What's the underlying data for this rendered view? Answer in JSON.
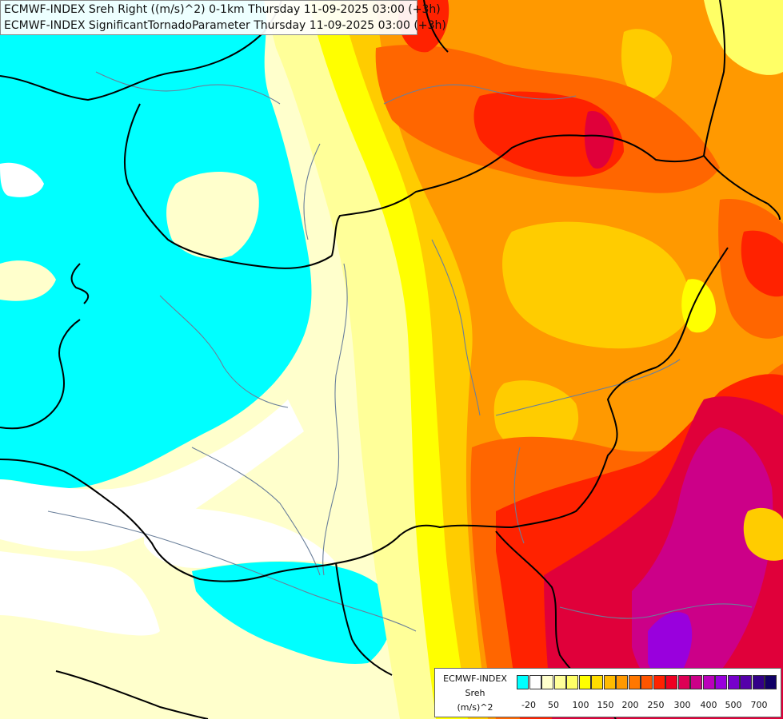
{
  "header": {
    "line1": "ECMWF-INDEX Sreh Right ((m/s)^2) 0-1km Thursday 11-09-2025 03:00 (+3h)",
    "line2": "ECMWF-INDEX SignificantTornadoParameter Thursday 11-09-2025 03:00 (+3h)"
  },
  "legend": {
    "title1": "ECMWF-INDEX",
    "title2": "Sreh",
    "title3": "(m/s)^2",
    "colors": [
      "#00ffff",
      "#ffffff",
      "#ffffcc",
      "#ffff99",
      "#ffff66",
      "#ffff00",
      "#ffdd00",
      "#ffbb00",
      "#ff9900",
      "#ff7700",
      "#ff5500",
      "#ff2200",
      "#ee0022",
      "#dd0055",
      "#cc0088",
      "#bb00bb",
      "#9900dd",
      "#7700cc",
      "#5500aa",
      "#330088",
      "#110066"
    ],
    "ticks": [
      "-20",
      "50",
      "100",
      "150",
      "200",
      "250",
      "300",
      "400",
      "500",
      "700"
    ]
  },
  "map": {
    "palette": {
      "cyan": "#00ffff",
      "white": "#ffffff",
      "pale": "#ffffcc",
      "light_yellow": "#ffff99",
      "yellow": "#ffff00",
      "gold": "#ffcc00",
      "orange": "#ff9900",
      "dark_orange": "#ff6600",
      "red": "#ff2200",
      "crimson": "#e0003a",
      "magenta": "#cc0088",
      "purple": "#9900dd"
    },
    "border_color": "#000000",
    "river_color": "#6a7f9a"
  }
}
